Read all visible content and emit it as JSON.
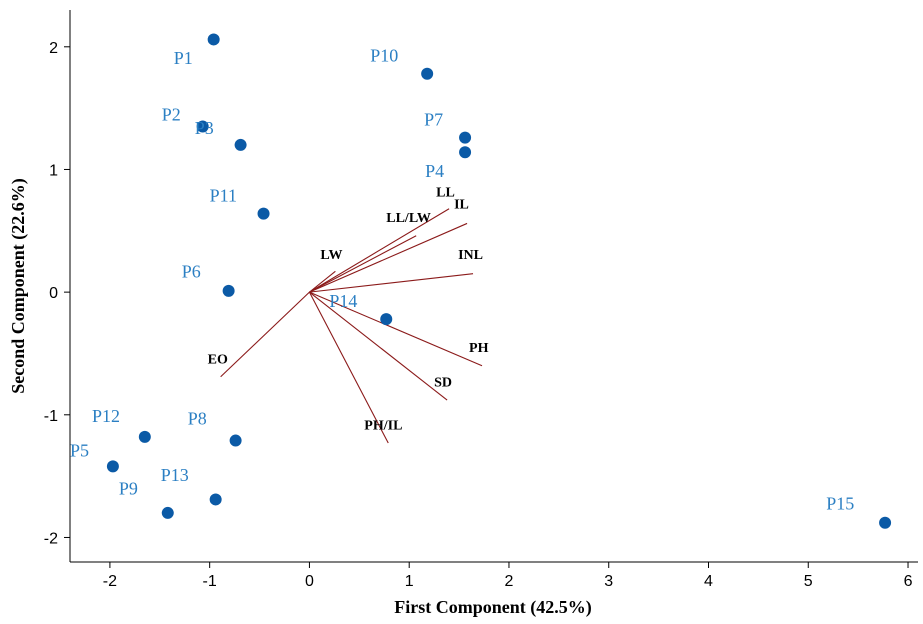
{
  "chart_data": {
    "type": "scatter",
    "title": "",
    "xlabel": "First Component (42.5%)",
    "ylabel": "Second Component (22.6%)",
    "xlim": [
      -2.4,
      6.1
    ],
    "ylim": [
      -2.2,
      2.3
    ],
    "x_ticks": [
      -2,
      -1,
      0,
      1,
      2,
      3,
      4,
      5,
      6
    ],
    "y_ticks": [
      -2,
      -1,
      0,
      1,
      2
    ],
    "x_tick_labels": [
      "-2",
      "-1",
      "0",
      "1",
      "2",
      "3",
      "4",
      "5",
      "6"
    ],
    "y_tick_labels": [
      "-2",
      "-1",
      "0",
      "1",
      "2"
    ],
    "grid": false,
    "points": [
      {
        "label": "P1",
        "x": -0.96,
        "y": 2.06,
        "lx": -1.36,
        "ly": 1.86
      },
      {
        "label": "P2",
        "x": -1.07,
        "y": 1.35,
        "lx": -1.48,
        "ly": 1.4
      },
      {
        "label": "P3",
        "x": -0.69,
        "y": 1.2,
        "lx": -1.15,
        "ly": 1.29
      },
      {
        "label": "P4",
        "x": 1.56,
        "y": 1.14,
        "lx": 1.16,
        "ly": 0.94
      },
      {
        "label": "P5",
        "x": -1.97,
        "y": -1.42,
        "lx": -2.4,
        "ly": -1.34
      },
      {
        "label": "P6",
        "x": -0.81,
        "y": 0.01,
        "lx": -1.28,
        "ly": 0.12
      },
      {
        "label": "P7",
        "x": 1.56,
        "y": 1.26,
        "lx": 1.15,
        "ly": 1.36
      },
      {
        "label": "P8",
        "x": -0.74,
        "y": -1.21,
        "lx": -1.22,
        "ly": -1.08
      },
      {
        "label": "P9",
        "x": -1.42,
        "y": -1.8,
        "lx": -1.91,
        "ly": -1.65
      },
      {
        "label": "P10",
        "x": 1.18,
        "y": 1.78,
        "lx": 0.61,
        "ly": 1.88
      },
      {
        "label": "P11",
        "x": -0.46,
        "y": 0.64,
        "lx": -1.0,
        "ly": 0.74
      },
      {
        "label": "P12",
        "x": -1.65,
        "y": -1.18,
        "lx": -2.18,
        "ly": -1.06
      },
      {
        "label": "P13",
        "x": -0.94,
        "y": -1.69,
        "lx": -1.49,
        "ly": -1.54
      },
      {
        "label": "P14",
        "x": 0.77,
        "y": -0.22,
        "lx": 0.2,
        "ly": -0.12
      },
      {
        "label": "P15",
        "x": 5.77,
        "y": -1.88,
        "lx": 5.18,
        "ly": -1.77
      }
    ],
    "vectors": [
      {
        "label": "LL",
        "x": 1.4,
        "y": 0.68,
        "lx": 1.27,
        "ly": 0.78
      },
      {
        "label": "IL",
        "x": 1.58,
        "y": 0.56,
        "lx": 1.45,
        "ly": 0.68
      },
      {
        "label": "LL/LW",
        "x": 1.07,
        "y": 0.46,
        "lx": 0.77,
        "ly": 0.57
      },
      {
        "label": "INL",
        "x": 1.64,
        "y": 0.15,
        "lx": 1.49,
        "ly": 0.27
      },
      {
        "label": "LW",
        "x": 0.26,
        "y": 0.17,
        "lx": 0.11,
        "ly": 0.27
      },
      {
        "label": "PH",
        "x": 1.73,
        "y": -0.6,
        "lx": 1.6,
        "ly": -0.49
      },
      {
        "label": "SD",
        "x": 1.38,
        "y": -0.88,
        "lx": 1.25,
        "ly": -0.77
      },
      {
        "label": "PH/IL",
        "x": 0.79,
        "y": -1.23,
        "lx": 0.55,
        "ly": -1.12
      },
      {
        "label": "EO",
        "x": -0.89,
        "y": -0.69,
        "lx": -1.02,
        "ly": -0.58
      }
    ]
  }
}
